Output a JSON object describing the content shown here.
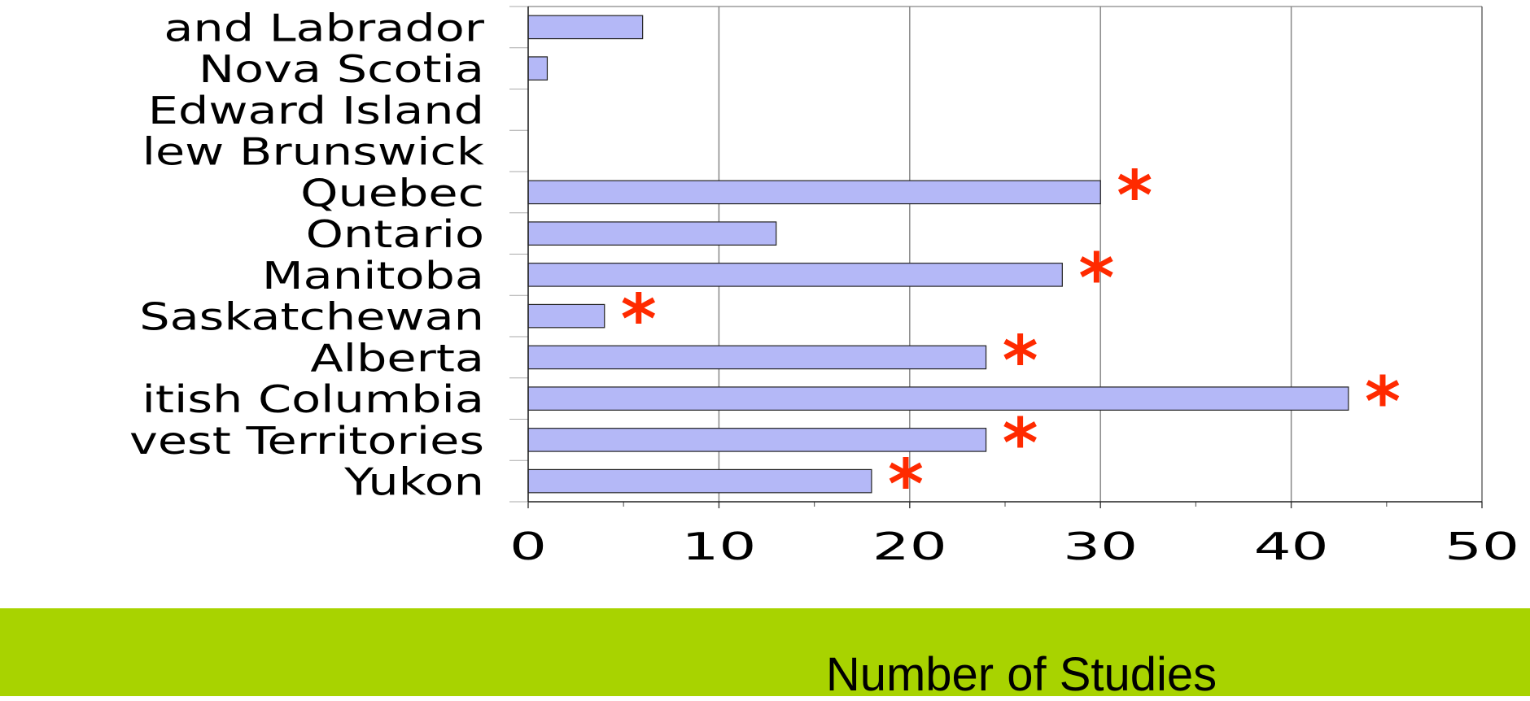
{
  "colors": {
    "bar_fill": "#b4b8f7",
    "bar_stroke": "#222222",
    "grid": "#888888",
    "star": "#ff2a00",
    "band": "#a8d300"
  },
  "chart_data": {
    "type": "bar",
    "orientation": "horizontal",
    "title": "",
    "xlabel": "Number of Studies",
    "ylabel": "",
    "xlim": [
      0,
      50
    ],
    "x_ticks": [
      0,
      10,
      20,
      30,
      40,
      50
    ],
    "grid": "vertical major gridlines",
    "legend": "none",
    "categories": [
      "and Labrador",
      "Nova Scotia",
      "Edward Island",
      "lew Brunswick",
      "Quebec",
      "Ontario",
      "Manitoba",
      "Saskatchewan",
      "Alberta",
      "itish Columbia",
      "vest Territories",
      "Yukon"
    ],
    "values": [
      6,
      1,
      0,
      0,
      30,
      13,
      28,
      4,
      24,
      43,
      24,
      18
    ],
    "annotations": [
      {
        "category": "Quebec",
        "text": "*"
      },
      {
        "category": "Manitoba",
        "text": "*"
      },
      {
        "category": "Saskatchewan",
        "text": "*"
      },
      {
        "category": "Alberta",
        "text": "*"
      },
      {
        "category": "itish Columbia",
        "text": "*"
      },
      {
        "category": "vest Territories",
        "text": "*"
      },
      {
        "category": "Yukon",
        "text": "*"
      }
    ]
  }
}
